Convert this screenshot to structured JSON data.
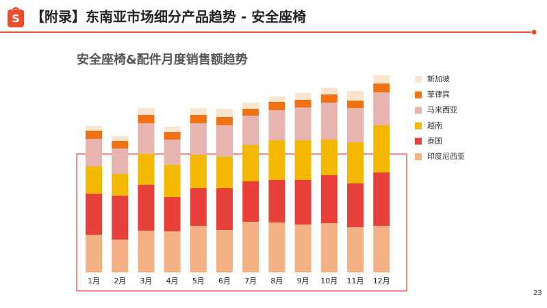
{
  "header": {
    "title": "【附录】东南亚市场细分产品趋势 - 安全座椅"
  },
  "page_number": "23",
  "chart_data": {
    "type": "stacked_bar",
    "title": "安全座椅&配件月度销售额趋势",
    "categories": [
      "1月",
      "2月",
      "3月",
      "4月",
      "5月",
      "6月",
      "7月",
      "8月",
      "9月",
      "10月",
      "11月",
      "12月"
    ],
    "series": [
      {
        "name": "印度尼西亚",
        "color": "#f4b183",
        "values": [
          55,
          48,
          61,
          60,
          68,
          62,
          74,
          73,
          70,
          72,
          66,
          68
        ]
      },
      {
        "name": "泰国",
        "color": "#e8413c",
        "values": [
          60,
          64,
          67,
          50,
          55,
          61,
          59,
          62,
          65,
          70,
          64,
          78
        ]
      },
      {
        "name": "越南",
        "color": "#f5b800",
        "values": [
          40,
          32,
          45,
          47,
          49,
          46,
          53,
          58,
          58,
          52,
          60,
          69
        ]
      },
      {
        "name": "马来西亚",
        "color": "#e8b4b0",
        "values": [
          40,
          37,
          45,
          37,
          46,
          46,
          43,
          44,
          48,
          54,
          50,
          48
        ]
      },
      {
        "name": "菲律宾",
        "color": "#f07214",
        "values": [
          12,
          11,
          12,
          11,
          12,
          12,
          10,
          12,
          11,
          12,
          11,
          13
        ]
      },
      {
        "name": "新加坡",
        "color": "#fbe5cf",
        "values": [
          7,
          7,
          10,
          8,
          10,
          12,
          9,
          8,
          10,
          10,
          14,
          12
        ]
      }
    ],
    "legend": "right"
  }
}
